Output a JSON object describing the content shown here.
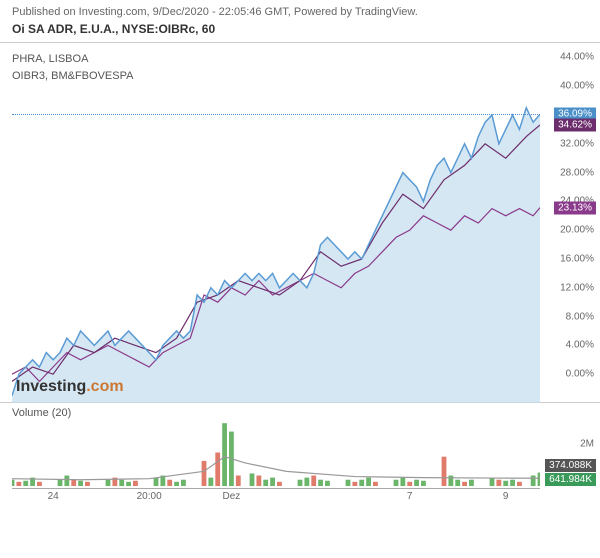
{
  "header": {
    "published": "Published on Investing.com, 9/Dec/2020 - 22:05:46 GMT, Powered by TradingView.",
    "title": "Oi SA ADR, E.U.A., NYSE:OIBRc, 60"
  },
  "legend": {
    "line1": "PHRA, LISBOA",
    "line2": "OIBR3, BM&FBOVESPA"
  },
  "chart": {
    "ylim": [
      -4,
      46
    ],
    "yticks": [
      0,
      4,
      8,
      12,
      16,
      20,
      24,
      28,
      32,
      36,
      40,
      44
    ],
    "ytick_labels": [
      "0.00%",
      "4.00%",
      "8.00%",
      "12.00%",
      "16.00%",
      "20.00%",
      "24.00%",
      "28.00%",
      "32.00%",
      "36.00%",
      "40.00%",
      "44.00%"
    ],
    "dotted_y": 36.09,
    "badges": [
      {
        "value": 36.09,
        "label": "36.09%",
        "color": "#4a8fc8"
      },
      {
        "value": 34.62,
        "label": "34.62%",
        "color": "#6b2d6b"
      },
      {
        "value": 23.13,
        "label": "23.13%",
        "color": "#8a3a8a"
      }
    ],
    "series_main": {
      "color": "#5a9bd4",
      "fill": "#c5ddf0",
      "width": 1.5,
      "points": [
        0,
        -3,
        1,
        0,
        2,
        1,
        3,
        2,
        4,
        1,
        5,
        3,
        6,
        2,
        7,
        3,
        8,
        5,
        9,
        4,
        10,
        6,
        11,
        5,
        12,
        4,
        13,
        5,
        14,
        6,
        15,
        4,
        16,
        5,
        17,
        6,
        18,
        5,
        19,
        4,
        20,
        3,
        21,
        2,
        22,
        4,
        23,
        5,
        24,
        6,
        25,
        5,
        26,
        6,
        27,
        11,
        28,
        10,
        29,
        12,
        30,
        11,
        31,
        13,
        32,
        12,
        33,
        13,
        34,
        14,
        35,
        13,
        36,
        14,
        37,
        13,
        38,
        14,
        39,
        12,
        40,
        13,
        41,
        14,
        42,
        13,
        43,
        12,
        44,
        14,
        45,
        18,
        46,
        19,
        47,
        18,
        48,
        17,
        49,
        16,
        50,
        17,
        51,
        16,
        52,
        18,
        53,
        20,
        54,
        22,
        55,
        24,
        56,
        26,
        57,
        28,
        58,
        27,
        59,
        26,
        60,
        24,
        61,
        27,
        62,
        29,
        63,
        30,
        64,
        28,
        65,
        30,
        66,
        32,
        67,
        30,
        68,
        33,
        69,
        35,
        70,
        36,
        71,
        32,
        72,
        34,
        73,
        36,
        74,
        34,
        75,
        37,
        76,
        35,
        77,
        36.09
      ]
    },
    "series_b": {
      "color": "#8a3a8a",
      "width": 1.2,
      "points": [
        0,
        0,
        2,
        1,
        4,
        -1,
        6,
        1,
        8,
        3,
        10,
        2,
        12,
        3,
        14,
        4,
        16,
        3,
        18,
        2,
        20,
        1,
        22,
        3,
        24,
        4,
        26,
        5,
        28,
        11,
        30,
        10,
        32,
        12,
        34,
        11,
        36,
        13,
        38,
        11,
        40,
        12,
        42,
        13,
        44,
        14,
        46,
        13,
        48,
        12,
        50,
        14,
        52,
        15,
        54,
        17,
        56,
        19,
        58,
        20,
        60,
        22,
        62,
        21,
        64,
        20,
        66,
        22,
        68,
        21,
        70,
        23,
        72,
        22,
        74,
        23,
        76,
        22,
        77,
        23.13
      ]
    },
    "series_c": {
      "color": "#6b2d6b",
      "width": 1.2,
      "points": [
        0,
        -1,
        3,
        1,
        6,
        0,
        9,
        4,
        12,
        3,
        15,
        5,
        18,
        4,
        21,
        3,
        24,
        5,
        27,
        10,
        30,
        11,
        33,
        13,
        36,
        12,
        39,
        11,
        42,
        13,
        45,
        17,
        48,
        15,
        51,
        16,
        54,
        21,
        57,
        25,
        60,
        23,
        63,
        27,
        66,
        29,
        69,
        32,
        72,
        30,
        75,
        33,
        77,
        34.62
      ]
    }
  },
  "volume": {
    "title": "Volume (20)",
    "ymax": 3.2,
    "ytick": {
      "y": 2,
      "label": "2M"
    },
    "badges": [
      {
        "label": "641.984K",
        "color": "#3a9a5a"
      },
      {
        "label": "374.088K",
        "color": "#555555"
      }
    ],
    "bars": [
      {
        "x": 0,
        "h": 0.3,
        "c": "#6ab56a"
      },
      {
        "x": 1,
        "h": 0.2,
        "c": "#e07a6a"
      },
      {
        "x": 2,
        "h": 0.25,
        "c": "#6ab56a"
      },
      {
        "x": 3,
        "h": 0.4,
        "c": "#6ab56a"
      },
      {
        "x": 4,
        "h": 0.2,
        "c": "#e07a6a"
      },
      {
        "x": 7,
        "h": 0.3,
        "c": "#6ab56a"
      },
      {
        "x": 8,
        "h": 0.5,
        "c": "#6ab56a"
      },
      {
        "x": 9,
        "h": 0.3,
        "c": "#e07a6a"
      },
      {
        "x": 10,
        "h": 0.25,
        "c": "#6ab56a"
      },
      {
        "x": 11,
        "h": 0.2,
        "c": "#e07a6a"
      },
      {
        "x": 14,
        "h": 0.3,
        "c": "#6ab56a"
      },
      {
        "x": 15,
        "h": 0.4,
        "c": "#e07a6a"
      },
      {
        "x": 16,
        "h": 0.3,
        "c": "#6ab56a"
      },
      {
        "x": 17,
        "h": 0.2,
        "c": "#6ab56a"
      },
      {
        "x": 18,
        "h": 0.25,
        "c": "#e07a6a"
      },
      {
        "x": 21,
        "h": 0.4,
        "c": "#6ab56a"
      },
      {
        "x": 22,
        "h": 0.5,
        "c": "#6ab56a"
      },
      {
        "x": 23,
        "h": 0.3,
        "c": "#e07a6a"
      },
      {
        "x": 24,
        "h": 0.2,
        "c": "#6ab56a"
      },
      {
        "x": 25,
        "h": 0.3,
        "c": "#6ab56a"
      },
      {
        "x": 28,
        "h": 1.2,
        "c": "#e07a6a"
      },
      {
        "x": 29,
        "h": 0.4,
        "c": "#6ab56a"
      },
      {
        "x": 30,
        "h": 1.6,
        "c": "#e07a6a"
      },
      {
        "x": 31,
        "h": 3.0,
        "c": "#6ab56a"
      },
      {
        "x": 32,
        "h": 2.6,
        "c": "#6ab56a"
      },
      {
        "x": 33,
        "h": 0.5,
        "c": "#e07a6a"
      },
      {
        "x": 35,
        "h": 0.6,
        "c": "#6ab56a"
      },
      {
        "x": 36,
        "h": 0.5,
        "c": "#e07a6a"
      },
      {
        "x": 37,
        "h": 0.3,
        "c": "#6ab56a"
      },
      {
        "x": 38,
        "h": 0.4,
        "c": "#6ab56a"
      },
      {
        "x": 39,
        "h": 0.2,
        "c": "#e07a6a"
      },
      {
        "x": 42,
        "h": 0.3,
        "c": "#6ab56a"
      },
      {
        "x": 43,
        "h": 0.4,
        "c": "#6ab56a"
      },
      {
        "x": 44,
        "h": 0.5,
        "c": "#e07a6a"
      },
      {
        "x": 45,
        "h": 0.3,
        "c": "#6ab56a"
      },
      {
        "x": 46,
        "h": 0.25,
        "c": "#6ab56a"
      },
      {
        "x": 49,
        "h": 0.3,
        "c": "#6ab56a"
      },
      {
        "x": 50,
        "h": 0.2,
        "c": "#e07a6a"
      },
      {
        "x": 51,
        "h": 0.3,
        "c": "#6ab56a"
      },
      {
        "x": 52,
        "h": 0.4,
        "c": "#6ab56a"
      },
      {
        "x": 53,
        "h": 0.2,
        "c": "#e07a6a"
      },
      {
        "x": 56,
        "h": 0.3,
        "c": "#6ab56a"
      },
      {
        "x": 57,
        "h": 0.4,
        "c": "#6ab56a"
      },
      {
        "x": 58,
        "h": 0.2,
        "c": "#e07a6a"
      },
      {
        "x": 59,
        "h": 0.3,
        "c": "#6ab56a"
      },
      {
        "x": 60,
        "h": 0.25,
        "c": "#6ab56a"
      },
      {
        "x": 63,
        "h": 1.4,
        "c": "#e07a6a"
      },
      {
        "x": 64,
        "h": 0.5,
        "c": "#6ab56a"
      },
      {
        "x": 65,
        "h": 0.3,
        "c": "#6ab56a"
      },
      {
        "x": 66,
        "h": 0.2,
        "c": "#e07a6a"
      },
      {
        "x": 67,
        "h": 0.3,
        "c": "#6ab56a"
      },
      {
        "x": 70,
        "h": 0.4,
        "c": "#6ab56a"
      },
      {
        "x": 71,
        "h": 0.3,
        "c": "#e07a6a"
      },
      {
        "x": 72,
        "h": 0.25,
        "c": "#6ab56a"
      },
      {
        "x": 73,
        "h": 0.3,
        "c": "#6ab56a"
      },
      {
        "x": 74,
        "h": 0.2,
        "c": "#e07a6a"
      },
      {
        "x": 76,
        "h": 0.5,
        "c": "#6ab56a"
      },
      {
        "x": 77,
        "h": 0.64,
        "c": "#6ab56a"
      }
    ],
    "ma_line": [
      0,
      0.35,
      10,
      0.3,
      20,
      0.35,
      28,
      0.7,
      31,
      1.4,
      34,
      1.1,
      40,
      0.7,
      50,
      0.45,
      60,
      0.4,
      70,
      0.38,
      77,
      0.37
    ]
  },
  "xaxis": {
    "max": 77,
    "ticks": [
      {
        "x": 6,
        "label": "24"
      },
      {
        "x": 20,
        "label": "20:00"
      },
      {
        "x": 32,
        "label": "Dez"
      },
      {
        "x": 58,
        "label": "7"
      },
      {
        "x": 72,
        "label": "9"
      }
    ]
  },
  "watermark": {
    "a": "Investing",
    "b": ".com"
  }
}
